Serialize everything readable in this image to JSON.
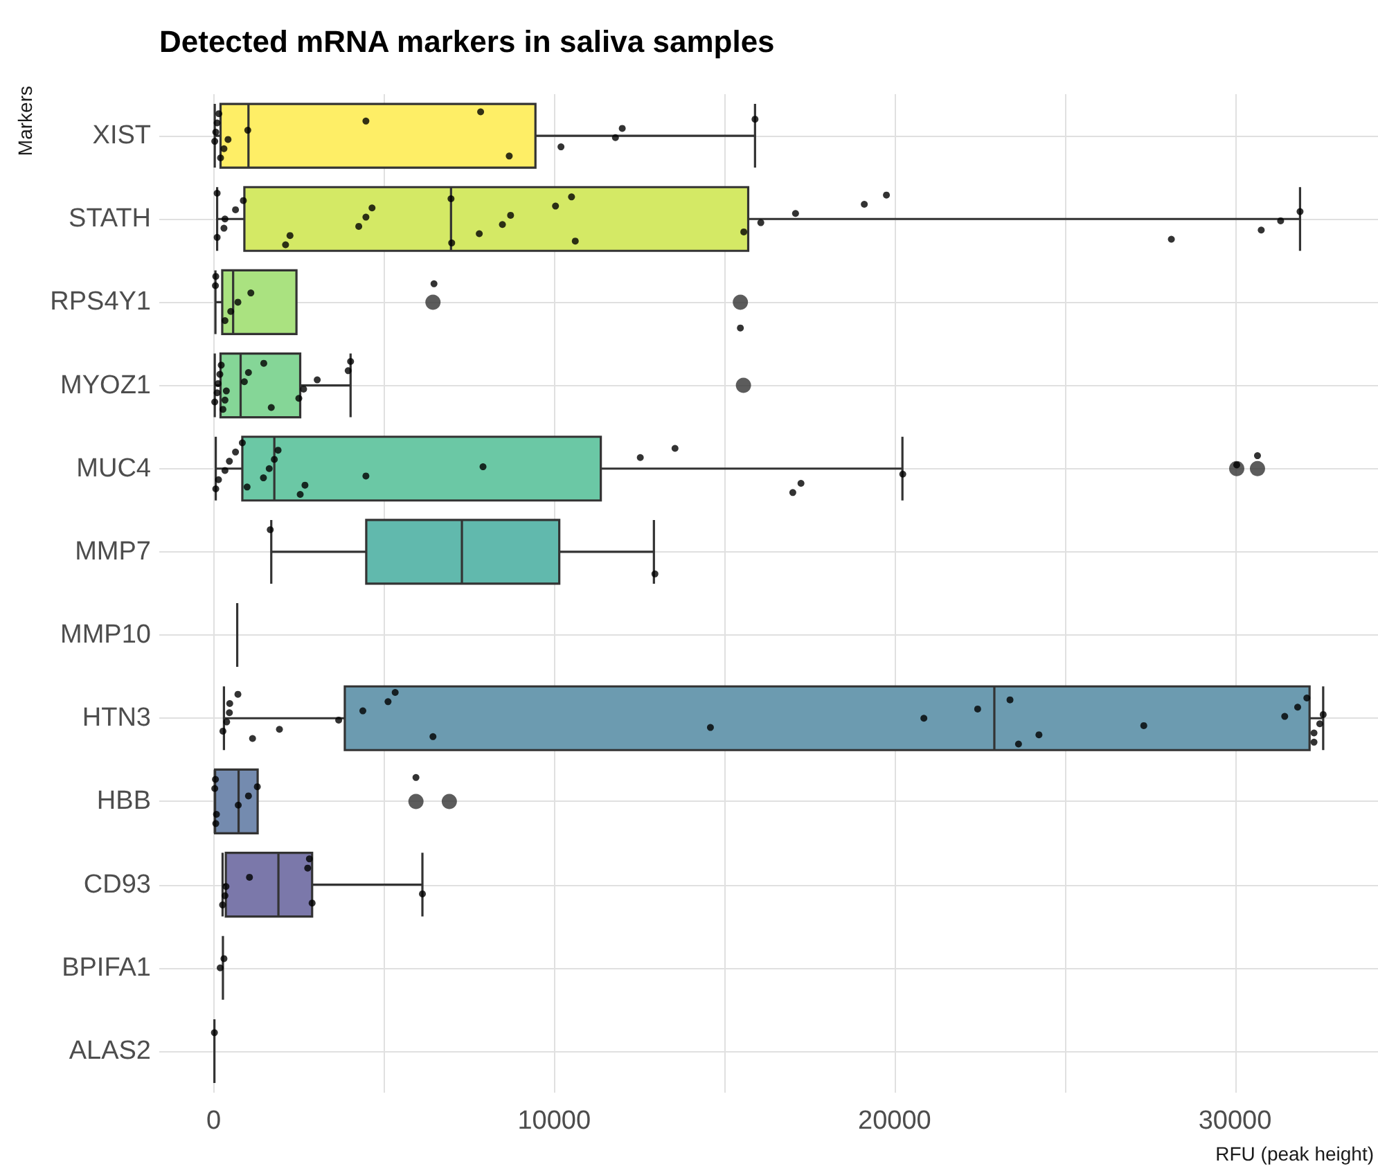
{
  "chart_data": {
    "type": "box",
    "orientation": "horizontal",
    "title": "Detected mRNA markers in saliva samples",
    "xlabel": "RFU (peak height)",
    "ylabel": "Markers",
    "categories": [
      "XIST",
      "STATH",
      "RPS4Y1",
      "MYOZ1",
      "MUC4",
      "MMP7",
      "MMP10",
      "HTN3",
      "HBB",
      "CD93",
      "BPIFA1",
      "ALAS2"
    ],
    "xlim": [
      -1600,
      34200
    ],
    "xticks": [
      0,
      {
        "value": 5000,
        "label": null
      },
      10000,
      {
        "value": 15000,
        "label": null
      },
      20000,
      {
        "value": 25000,
        "label": null
      },
      30000
    ],
    "grid": true,
    "series": [
      {
        "type": "box",
        "colors": [
          "#feee66",
          "#d4e965",
          "#aae280",
          "#85d697",
          "#6bc8a5",
          "#61b9ad",
          "#333333",
          "#6c9bb0",
          "#748baf",
          "#7b78aa",
          "#333333",
          "#333333"
        ],
        "boxes": [
          {
            "low": 30,
            "q1": 200,
            "median": 1020,
            "q3": 9450,
            "high": 15900
          },
          {
            "low": 100,
            "q1": 900,
            "median": 6970,
            "q3": 15700,
            "high": 31910
          },
          {
            "low": 50,
            "q1": 250,
            "median": 570,
            "q3": 2430,
            "high": 2430,
            "outliers": [
              6440,
              15470
            ]
          },
          {
            "low": 30,
            "q1": 200,
            "median": 790,
            "q3": 2540,
            "high": 4020,
            "outliers": [
              15560
            ]
          },
          {
            "low": 60,
            "q1": 840,
            "median": 1780,
            "q3": 11370,
            "high": 20230,
            "outliers": [
              30050,
              30660
            ]
          },
          {
            "low": 1690,
            "q1": 4480,
            "median": 7290,
            "q3": 10150,
            "high": 12930
          },
          {
            "low": 690,
            "q1": 690,
            "median": 690,
            "q3": 690,
            "high": 690
          },
          {
            "low": 300,
            "q1": 3850,
            "median": 22930,
            "q3": 32190,
            "high": 32590
          },
          {
            "low": 30,
            "q1": 40,
            "median": 730,
            "q3": 1290,
            "high": 1290,
            "outliers": [
              5940,
              6920
            ]
          },
          {
            "low": 260,
            "q1": 355,
            "median": 1900,
            "q3": 2890,
            "high": 6130
          },
          {
            "low": 270,
            "q1": 270,
            "median": 270,
            "q3": 270,
            "high": 270
          },
          {
            "low": 20,
            "q1": 20,
            "median": 20,
            "q3": 20,
            "high": 20
          }
        ]
      },
      {
        "type": "scatter",
        "color": "#000000",
        "x": [
          "XIST",
          "XIST",
          "XIST",
          "XIST",
          "XIST",
          "XIST",
          "XIST",
          "XIST",
          "XIST",
          "XIST",
          "XIST",
          "XIST",
          "XIST",
          "XIST",
          "XIST",
          "STATH",
          "STATH",
          "STATH",
          "STATH",
          "STATH",
          "STATH",
          "STATH",
          "STATH",
          "STATH",
          "STATH",
          "STATH",
          "STATH",
          "STATH",
          "STATH",
          "STATH",
          "STATH",
          "STATH",
          "STATH",
          "STATH",
          "STATH",
          "STATH",
          "STATH",
          "STATH",
          "STATH",
          "STATH",
          "STATH",
          "STATH",
          "STATH",
          "RPS4Y1",
          "RPS4Y1",
          "RPS4Y1",
          "RPS4Y1",
          "RPS4Y1",
          "RPS4Y1",
          "RPS4Y1",
          "RPS4Y1",
          "MYOZ1",
          "MYOZ1",
          "MYOZ1",
          "MYOZ1",
          "MYOZ1",
          "MYOZ1",
          "MYOZ1",
          "MYOZ1",
          "MYOZ1",
          "MYOZ1",
          "MYOZ1",
          "MYOZ1",
          "MYOZ1",
          "MYOZ1",
          "MYOZ1",
          "MYOZ1",
          "MYOZ1",
          "MUC4",
          "MUC4",
          "MUC4",
          "MUC4",
          "MUC4",
          "MUC4",
          "MUC4",
          "MUC4",
          "MUC4",
          "MUC4",
          "MUC4",
          "MUC4",
          "MUC4",
          "MUC4",
          "MUC4",
          "MUC4",
          "MUC4",
          "MUC4",
          "MUC4",
          "MUC4",
          "MUC4",
          "MUC4",
          "MMP7",
          "MMP7",
          "HTN3",
          "HTN3",
          "HTN3",
          "HTN3",
          "HTN3",
          "HTN3",
          "HTN3",
          "HTN3",
          "HTN3",
          "HTN3",
          "HTN3",
          "HTN3",
          "HTN3",
          "HTN3",
          "HTN3",
          "HTN3",
          "HTN3",
          "HTN3",
          "HTN3",
          "HTN3",
          "HTN3",
          "HTN3",
          "HTN3",
          "HTN3",
          "HTN3",
          "HTN3",
          "HBB",
          "HBB",
          "HBB",
          "HBB",
          "HBB",
          "HBB",
          "HBB",
          "HBB",
          "CD93",
          "CD93",
          "CD93",
          "CD93",
          "CD93",
          "CD93",
          "CD93",
          "CD93",
          "BPIFA1",
          "BPIFA1",
          "ALAS2"
        ],
        "values": [
          30,
          60,
          100,
          150,
          200,
          300,
          420,
          1000,
          4470,
          7840,
          8680,
          10200,
          11800,
          12000,
          15900,
          100,
          100,
          300,
          330,
          640,
          870,
          2110,
          2240,
          4260,
          4470,
          4650,
          6970,
          6990,
          7800,
          8480,
          8720,
          10040,
          10510,
          10620,
          15570,
          16070,
          17090,
          19110,
          19760,
          28130,
          30770,
          31340,
          31910,
          50,
          60,
          330,
          500,
          710,
          1090,
          6470,
          15470,
          30,
          100,
          130,
          180,
          220,
          270,
          330,
          370,
          900,
          1020,
          1470,
          1690,
          2500,
          2640,
          3040,
          3950,
          4020,
          60,
          140,
          330,
          460,
          640,
          840,
          980,
          1460,
          1630,
          1780,
          1890,
          2540,
          2680,
          4470,
          7910,
          12530,
          13550,
          17010,
          17250,
          20240,
          30050,
          30660,
          1660,
          12960,
          270,
          380,
          460,
          470,
          710,
          1140,
          1930,
          3670,
          4380,
          5120,
          5330,
          6440,
          14590,
          20860,
          22440,
          23390,
          23640,
          24240,
          27320,
          31460,
          31840,
          32110,
          32320,
          32320,
          32490,
          32590,
          30,
          50,
          60,
          80,
          720,
          1020,
          1280,
          5940,
          260,
          330,
          360,
          1050,
          2760,
          2810,
          2890,
          6130,
          190,
          300,
          20
        ]
      }
    ]
  }
}
